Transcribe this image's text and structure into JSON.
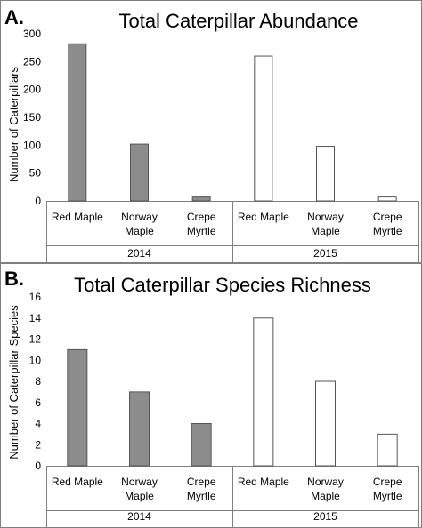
{
  "chart_data": [
    {
      "panel": "A.",
      "type": "bar",
      "title": "Total Caterpillar Abundance",
      "ylabel": "Number of Caterpillars",
      "ylim": [
        0,
        300
      ],
      "yticks": [
        "0",
        "50",
        "100",
        "150",
        "200",
        "250",
        "300"
      ],
      "groups": [
        "2014",
        "2015"
      ],
      "categories": [
        [
          "Red Maple"
        ],
        [
          "Norway",
          "Maple"
        ],
        [
          "Crepe",
          "Myrtle"
        ]
      ],
      "series": [
        {
          "group": "2014",
          "values": [
            282,
            102,
            7
          ],
          "color": "#8c8c8c"
        },
        {
          "group": "2015",
          "values": [
            260,
            98,
            7
          ],
          "color": "#ffffff"
        }
      ],
      "grid": false
    },
    {
      "panel": "B.",
      "type": "bar",
      "title": "Total Caterpillar Species Richness",
      "ylabel": "Number of Caterpillar Species",
      "ylim": [
        0,
        16
      ],
      "yticks": [
        "0",
        "2",
        "4",
        "6",
        "8",
        "10",
        "12",
        "14",
        "16"
      ],
      "groups": [
        "2014",
        "2015"
      ],
      "categories": [
        [
          "Red Maple"
        ],
        [
          "Norway",
          "Maple"
        ],
        [
          "Crepe",
          "Myrtle"
        ]
      ],
      "series": [
        {
          "group": "2014",
          "values": [
            11,
            7,
            4
          ],
          "color": "#8c8c8c"
        },
        {
          "group": "2015",
          "values": [
            14,
            8,
            3
          ],
          "color": "#ffffff"
        }
      ],
      "grid": false
    }
  ]
}
